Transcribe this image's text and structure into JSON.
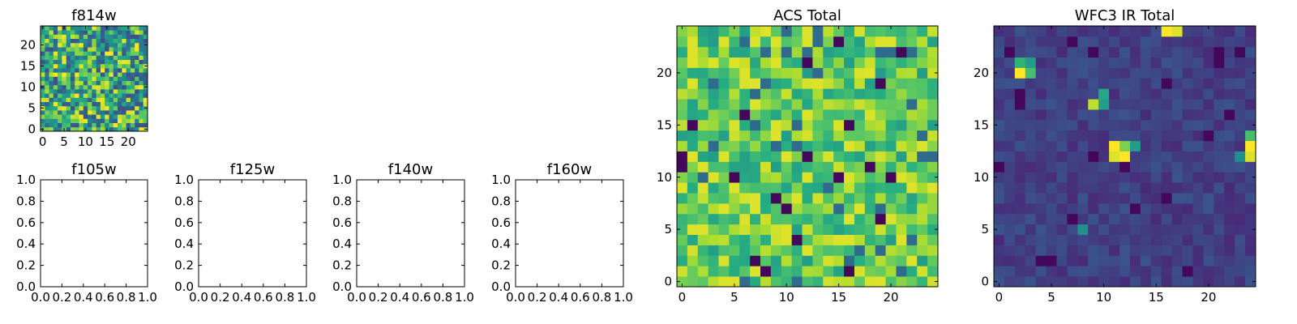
{
  "colormap": "viridis",
  "chart_data": [
    {
      "id": "f814w",
      "type": "heatmap",
      "title": "f814w",
      "grid_size": 25,
      "xlim": [
        0,
        25
      ],
      "ylim": [
        0,
        25
      ],
      "xticks": [
        0,
        5,
        10,
        15,
        20
      ],
      "yticks": [
        0,
        5,
        10,
        15,
        20
      ],
      "xtick_labels": [
        "0",
        "5",
        "10",
        "15",
        "20"
      ],
      "ytick_labels": [
        "0",
        "5",
        "10",
        "15",
        "20"
      ],
      "values": "uniform_noise",
      "value_range": [
        0,
        1
      ]
    },
    {
      "id": "f105w",
      "type": "empty",
      "title": "f105w",
      "xlim": [
        0,
        1
      ],
      "ylim": [
        0,
        1
      ],
      "xtick_labels": [
        "0.0",
        "0.2",
        "0.4",
        "0.6",
        "0.8",
        "1.0"
      ],
      "ytick_labels": [
        "0.0",
        "0.2",
        "0.4",
        "0.6",
        "0.8",
        "1.0"
      ]
    },
    {
      "id": "f125w",
      "type": "empty",
      "title": "f125w",
      "xlim": [
        0,
        1
      ],
      "ylim": [
        0,
        1
      ],
      "xtick_labels": [
        "0.0",
        "0.2",
        "0.4",
        "0.6",
        "0.8",
        "1.0"
      ],
      "ytick_labels": [
        "0.0",
        "0.2",
        "0.4",
        "0.6",
        "0.8",
        "1.0"
      ]
    },
    {
      "id": "f140w",
      "type": "empty",
      "title": "f140w",
      "xlim": [
        0,
        1
      ],
      "ylim": [
        0,
        1
      ],
      "xtick_labels": [
        "0.0",
        "0.2",
        "0.4",
        "0.6",
        "0.8",
        "1.0"
      ],
      "ytick_labels": [
        "0.0",
        "0.2",
        "0.4",
        "0.6",
        "0.8",
        "1.0"
      ]
    },
    {
      "id": "f160w",
      "type": "empty",
      "title": "f160w",
      "xlim": [
        0,
        1
      ],
      "ylim": [
        0,
        1
      ],
      "xtick_labels": [
        "0.0",
        "0.2",
        "0.4",
        "0.6",
        "0.8",
        "1.0"
      ],
      "ytick_labels": [
        "0.0",
        "0.2",
        "0.4",
        "0.6",
        "0.8",
        "1.0"
      ]
    },
    {
      "id": "acs-total",
      "type": "heatmap",
      "title": "ACS Total",
      "grid_size": 25,
      "xlim": [
        0,
        25
      ],
      "ylim": [
        0,
        25
      ],
      "xticks": [
        0,
        5,
        10,
        15,
        20
      ],
      "yticks": [
        0,
        5,
        10,
        15,
        20
      ],
      "xtick_labels": [
        "0",
        "5",
        "10",
        "15",
        "20"
      ],
      "ytick_labels": [
        "0",
        "5",
        "10",
        "15",
        "20"
      ],
      "values": "noise_biased_high",
      "value_range": [
        0,
        1
      ]
    },
    {
      "id": "wfc3-ir-total",
      "type": "heatmap",
      "title": "WFC3 IR Total",
      "grid_size": 25,
      "xlim": [
        0,
        25
      ],
      "ylim": [
        0,
        25
      ],
      "xticks": [
        0,
        5,
        10,
        15,
        20
      ],
      "yticks": [
        0,
        5,
        10,
        15,
        20
      ],
      "xtick_labels": [
        "0",
        "5",
        "10",
        "15",
        "20"
      ],
      "ytick_labels": [
        "0",
        "5",
        "10",
        "15",
        "20"
      ],
      "values": "noise_low_with_hotspots",
      "hotspots": [
        {
          "x": 16,
          "y": 24,
          "v": 1.0
        },
        {
          "x": 17,
          "y": 24,
          "v": 0.95
        },
        {
          "x": 2,
          "y": 21,
          "v": 0.65
        },
        {
          "x": 3,
          "y": 21,
          "v": 0.55
        },
        {
          "x": 2,
          "y": 20,
          "v": 1.0
        },
        {
          "x": 3,
          "y": 20,
          "v": 0.7
        },
        {
          "x": 10,
          "y": 18,
          "v": 0.6
        },
        {
          "x": 9,
          "y": 17,
          "v": 0.9
        },
        {
          "x": 10,
          "y": 17,
          "v": 0.55
        },
        {
          "x": 11,
          "y": 13,
          "v": 1.0
        },
        {
          "x": 12,
          "y": 13,
          "v": 0.8
        },
        {
          "x": 13,
          "y": 13,
          "v": 0.55
        },
        {
          "x": 11,
          "y": 12,
          "v": 0.95
        },
        {
          "x": 12,
          "y": 12,
          "v": 1.0
        },
        {
          "x": 24,
          "y": 14,
          "v": 0.7
        },
        {
          "x": 24,
          "y": 13,
          "v": 1.0
        },
        {
          "x": 24,
          "y": 12,
          "v": 0.95
        },
        {
          "x": 23,
          "y": 12,
          "v": 0.5
        },
        {
          "x": 8,
          "y": 5,
          "v": 0.5
        }
      ],
      "value_range": [
        0,
        1
      ]
    }
  ]
}
